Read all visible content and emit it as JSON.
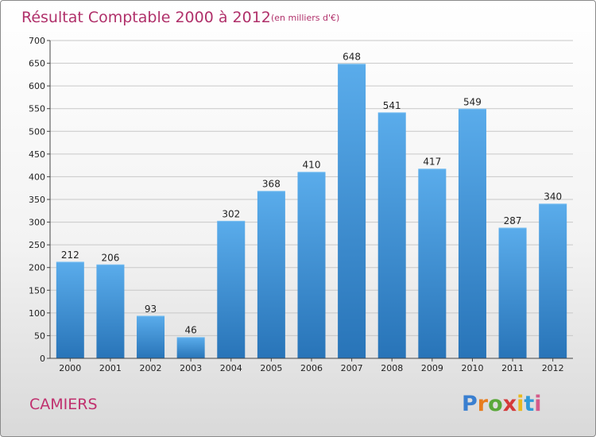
{
  "chart_data": {
    "type": "bar",
    "title": "Résultat Comptable 2000 à 2012",
    "subtitle": "(en milliers d'€)",
    "categories": [
      "2000",
      "2001",
      "2002",
      "2003",
      "2004",
      "2005",
      "2006",
      "2007",
      "2008",
      "2009",
      "2010",
      "2011",
      "2012"
    ],
    "values": [
      212,
      206,
      93,
      46,
      302,
      368,
      410,
      648,
      541,
      417,
      549,
      287,
      340
    ],
    "ylim": [
      0,
      700
    ],
    "yticks": [
      0,
      50,
      100,
      150,
      200,
      250,
      300,
      350,
      400,
      450,
      500,
      550,
      600,
      650,
      700
    ],
    "grid": true,
    "xlabel": "",
    "ylabel": "",
    "bar_color": "#3d8fd4"
  },
  "footer": {
    "commune": "CAMIERS",
    "brand_letters": [
      "P",
      "r",
      "o",
      "x",
      "i",
      "t",
      "i"
    ],
    "brand_colors": [
      "#3a7fd0",
      "#e87d1e",
      "#5aa83a",
      "#d43a3a",
      "#e8b91e",
      "#2f9ad8",
      "#d45a8a"
    ]
  }
}
